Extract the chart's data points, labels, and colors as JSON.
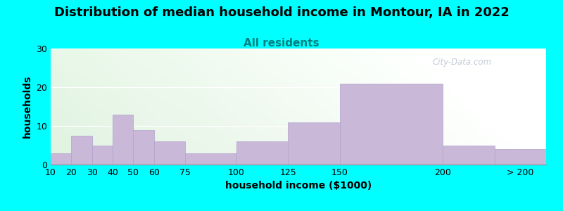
{
  "title": "Distribution of median household income in Montour, IA in 2022",
  "subtitle": "All residents",
  "xlabel": "household income ($1000)",
  "ylabel": "households",
  "background_color": "#00FFFF",
  "bar_color": "#c9b8d8",
  "bar_edge_color": "#b0a0cc",
  "values": [
    3,
    7.5,
    5,
    13,
    9,
    6,
    3,
    6,
    11,
    21,
    5,
    4
  ],
  "bar_lefts": [
    10,
    20,
    30,
    40,
    50,
    60,
    75,
    100,
    125,
    150,
    200,
    225
  ],
  "bar_rights": [
    20,
    30,
    40,
    50,
    60,
    75,
    100,
    125,
    150,
    200,
    225,
    250
  ],
  "xlim": [
    10,
    250
  ],
  "ylim": [
    0,
    30
  ],
  "yticks": [
    0,
    10,
    20,
    30
  ],
  "xtick_positions": [
    10,
    20,
    30,
    40,
    50,
    60,
    75,
    100,
    125,
    150,
    200,
    237.5
  ],
  "xtick_labels": [
    "10",
    "20",
    "30",
    "40",
    "50",
    "60",
    "75",
    "100",
    "125",
    "150",
    "200",
    "> 200"
  ],
  "title_fontsize": 13,
  "subtitle_fontsize": 11,
  "axis_label_fontsize": 10,
  "tick_fontsize": 9,
  "watermark_text": "City-Data.com",
  "watermark_color": "#b0b8c8"
}
